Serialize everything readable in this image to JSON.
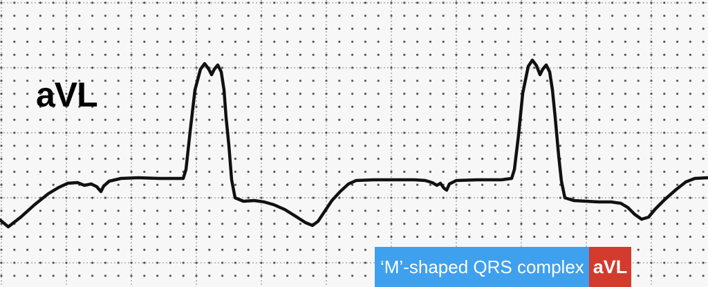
{
  "lead": {
    "label": "aVL"
  },
  "caption": {
    "text": "‘M’-shaped QRS complex",
    "badge": "aVL",
    "text_bg": "#3fa0ee",
    "badge_bg": "#d33b2c"
  },
  "colors": {
    "paper": "#f7f7f7",
    "grid_line": "#9a9a9a",
    "grid_dot": "#555555",
    "trace": "#111111"
  }
}
